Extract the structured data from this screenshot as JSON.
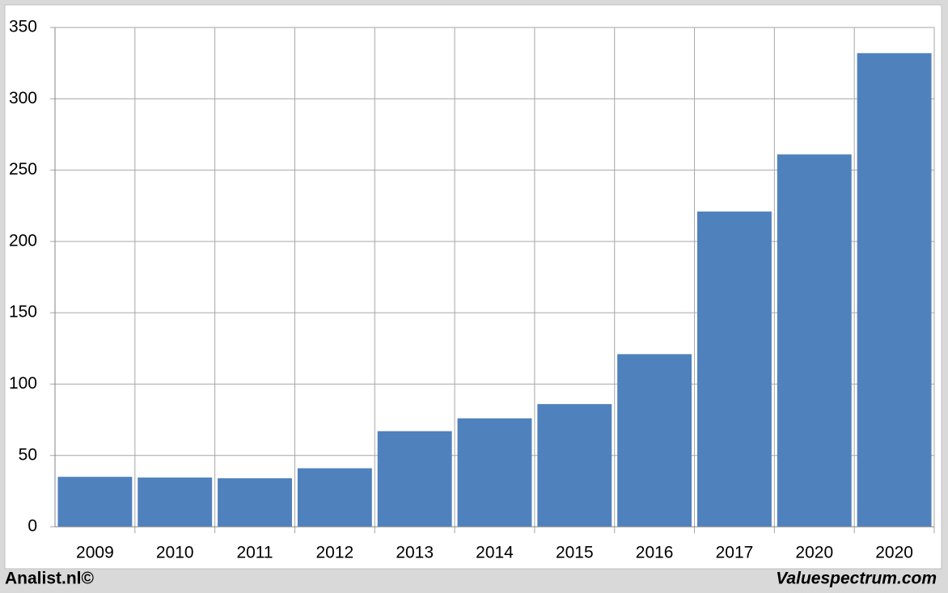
{
  "chart_data": {
    "type": "bar",
    "categories": [
      "2009",
      "2010",
      "2011",
      "2012",
      "2013",
      "2014",
      "2015",
      "2016",
      "2017",
      "2020",
      "2020"
    ],
    "values": [
      35,
      34.5,
      34,
      41,
      67,
      76,
      86,
      121,
      221,
      261,
      332
    ],
    "color": "#4f81bd",
    "ylim": [
      0,
      350
    ],
    "yticks": [
      0,
      50,
      100,
      150,
      200,
      250,
      300,
      350
    ],
    "grid": true,
    "footer_left": "Analist.nl©",
    "footer_right": "Valuespectrum.com"
  }
}
